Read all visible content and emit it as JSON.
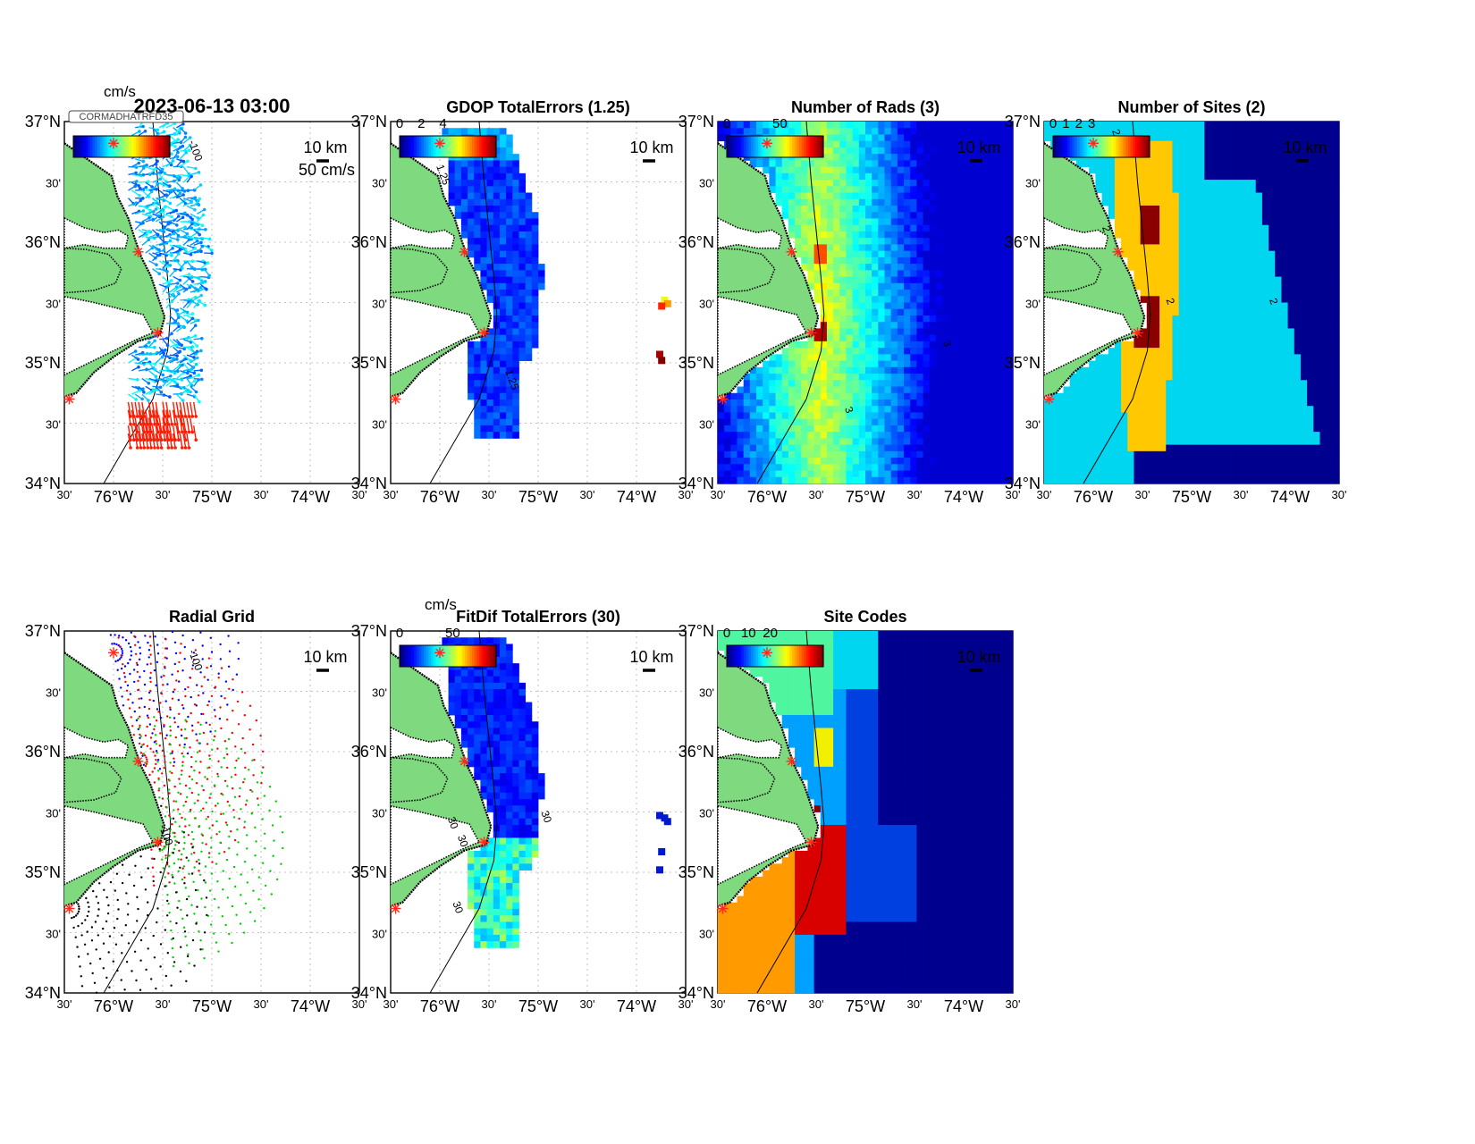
{
  "colors": {
    "land": "#7fd97f",
    "ocean": "#ffffff",
    "site_marker": "#ff2a1a"
  },
  "lat_labels": [
    "37°N",
    "30'",
    "36°N",
    "30'",
    "35°N",
    "30'",
    "34°N"
  ],
  "lon_labels": [
    "30'",
    "76°W",
    "30'",
    "75°W",
    "30'",
    "74°W",
    "30'"
  ],
  "scale_bar_label": "10 km",
  "panels": [
    {
      "id": "vectors",
      "title": "2023-06-13 03:00",
      "colorbar_unit": "cm/s",
      "colorbar_ticks": [],
      "vector_scale_label": "50 cm/s",
      "contour_labels": [
        "-100"
      ],
      "field": "vectors",
      "legend_text": "CORMADHATRFD35"
    },
    {
      "id": "gdop",
      "title": "GDOP TotalErrors (1.25)",
      "colorbar_ticks": [
        "0",
        "2",
        "4"
      ],
      "contour_labels": [
        "1.25",
        "1.25"
      ],
      "field": "gdop"
    },
    {
      "id": "nrads",
      "title": "Number of Rads (3)",
      "colorbar_ticks": [
        "0",
        "50"
      ],
      "contour_labels": [
        "3",
        "3"
      ],
      "field": "nrads"
    },
    {
      "id": "nsites",
      "title": "Number of Sites (2)",
      "colorbar_ticks": [
        "0",
        "1",
        "2",
        "3"
      ],
      "contour_labels": [
        "2",
        "2",
        "2",
        "2"
      ],
      "field": "nsites"
    },
    {
      "id": "radgrid",
      "title": "Radial Grid",
      "colorbar_ticks": [],
      "contour_labels": [
        "-100",
        "-100"
      ],
      "field": "radgrid"
    },
    {
      "id": "fitdif",
      "title": "FitDif TotalErrors (30)",
      "colorbar_unit": "cm/s",
      "colorbar_ticks": [
        "0",
        "50"
      ],
      "contour_labels": [
        "30",
        "30",
        "30",
        "30"
      ],
      "field": "fitdif"
    },
    {
      "id": "sitecodes",
      "title": "Site Codes",
      "colorbar_ticks": [
        "0",
        "10",
        "20"
      ],
      "contour_labels": [],
      "field": "sitecodes"
    }
  ]
}
